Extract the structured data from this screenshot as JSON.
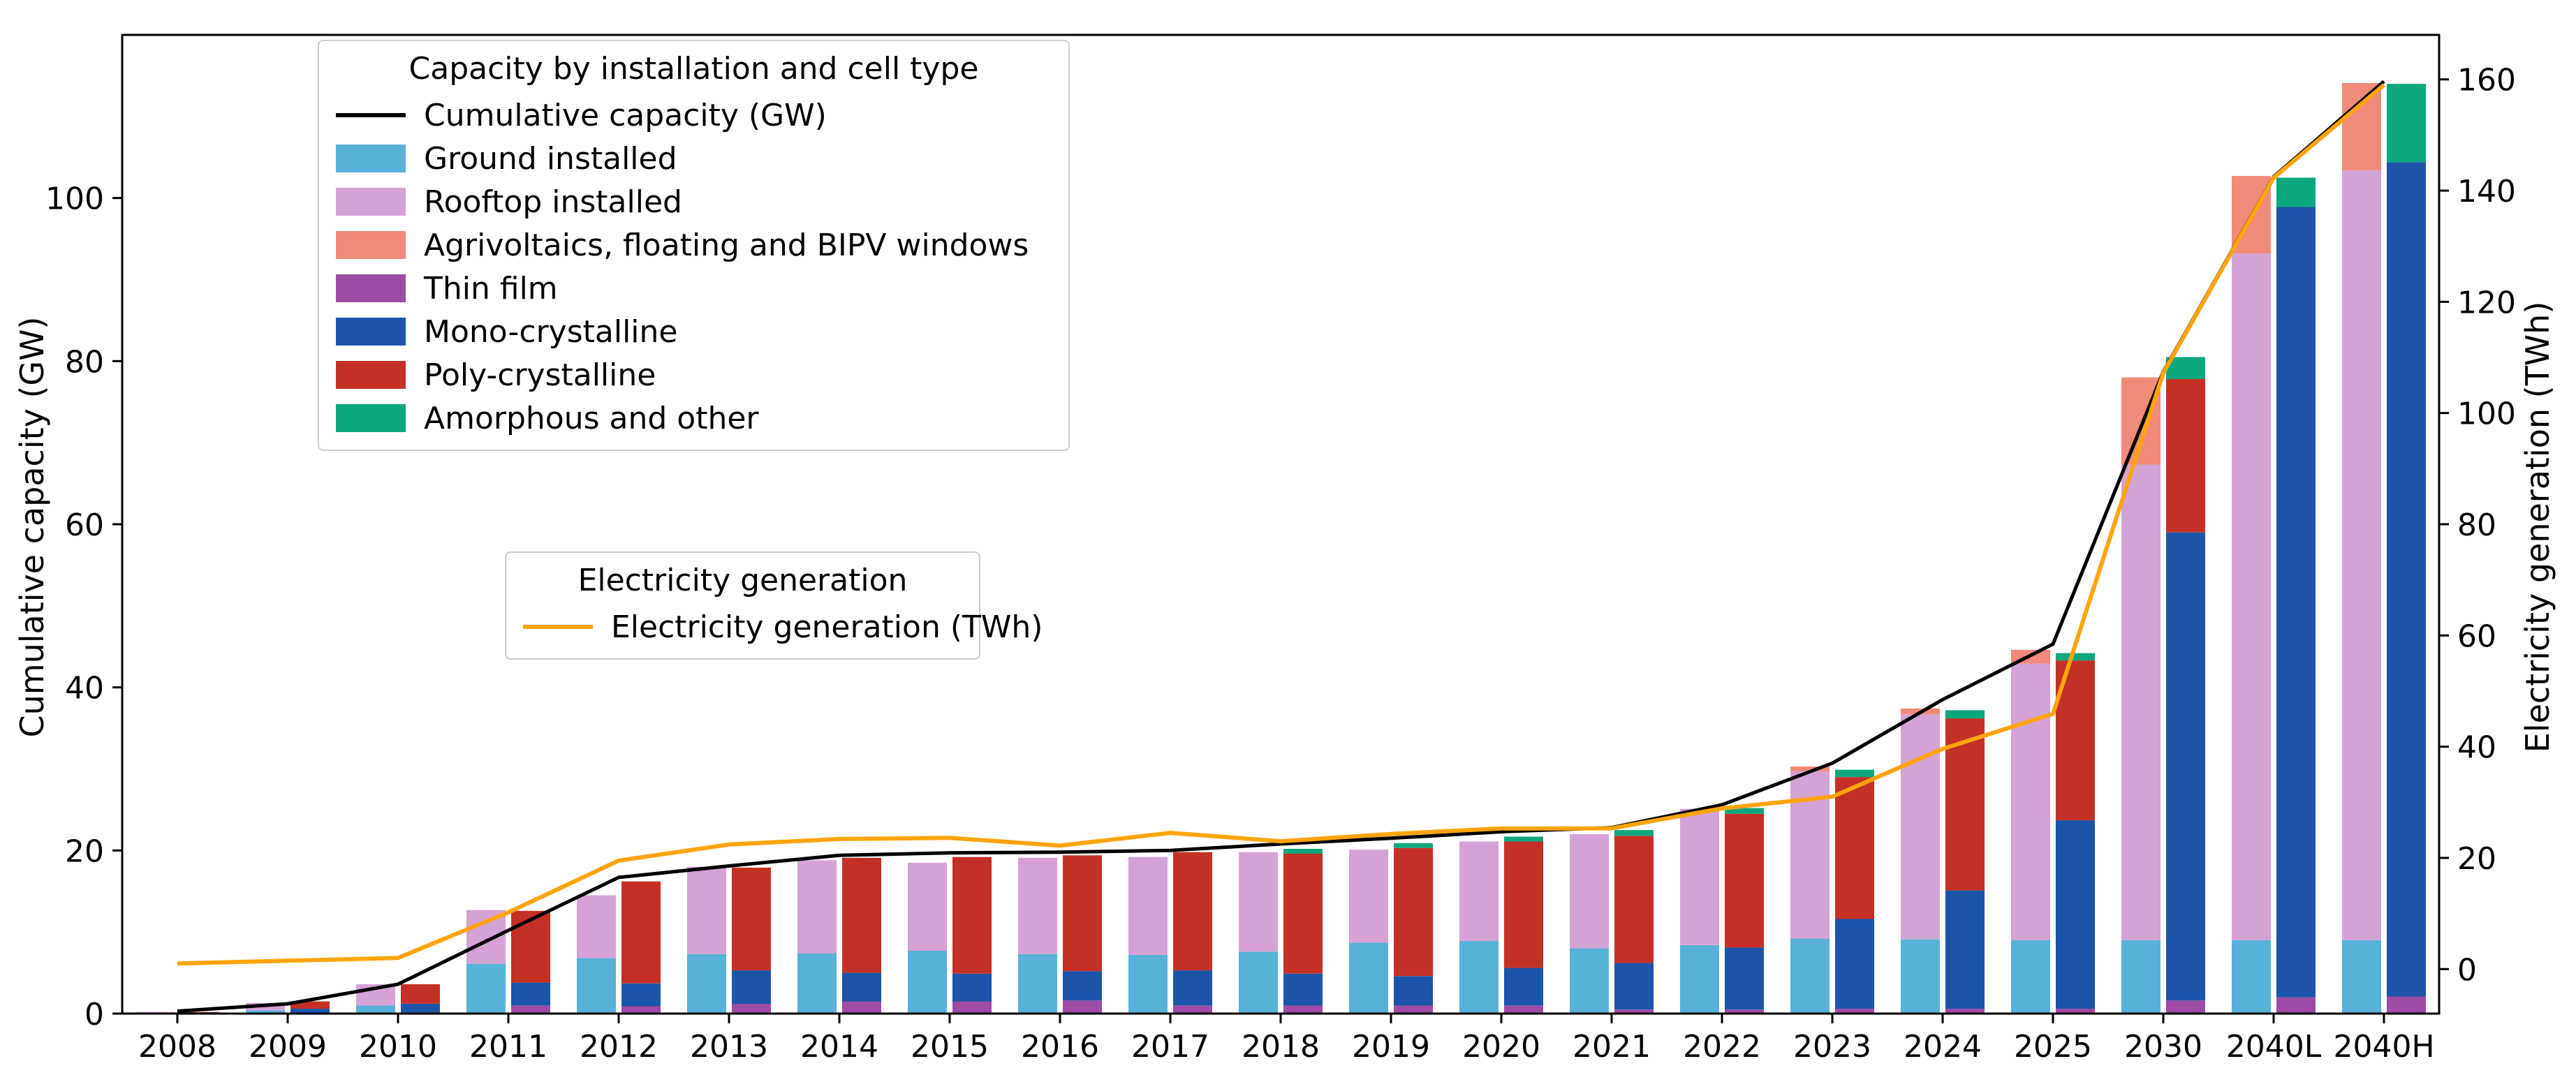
{
  "figure": {
    "left_axis_label": "Cumulative capacity (GW)",
    "right_axis_label": "Electricity generation (TWh)"
  },
  "chart_data": {
    "type": "bar",
    "title": "",
    "categories": [
      "2008",
      "2009",
      "2010",
      "2011",
      "2012",
      "2013",
      "2014",
      "2015",
      "2016",
      "2017",
      "2018",
      "2019",
      "2020",
      "2021",
      "2022",
      "2023",
      "2024",
      "2025",
      "2030",
      "2040L",
      "2040H"
    ],
    "left_axis": {
      "label": "Cumulative capacity (GW)",
      "min": 0,
      "max": 120,
      "ticks": [
        0,
        20,
        40,
        60,
        80,
        100
      ]
    },
    "right_axis": {
      "label": "Electricity generation (TWh)",
      "min": -8,
      "max": 168,
      "ticks": [
        0,
        20,
        40,
        60,
        80,
        100,
        120,
        140,
        160
      ]
    },
    "grid": "off",
    "installation_series": [
      {
        "name": "Ground installed",
        "color": "#58b1d8",
        "values": [
          0.05,
          0.4,
          1.0,
          6.1,
          6.8,
          7.3,
          7.4,
          7.7,
          7.3,
          7.2,
          7.6,
          8.7,
          8.9,
          8.0,
          8.4,
          9.2,
          9.1,
          9.0,
          9.0,
          9.0,
          9.0
        ]
      },
      {
        "name": "Rooftop installed",
        "color": "#d5a2d6",
        "values": [
          0.15,
          0.9,
          2.6,
          6.6,
          7.7,
          10.7,
          11.4,
          10.8,
          11.8,
          12.0,
          12.2,
          11.4,
          12.2,
          14.0,
          16.7,
          20.5,
          27.6,
          33.9,
          58.3,
          84.2,
          94.4
        ]
      },
      {
        "name": "Agrivoltaics, floating and BIPV windows",
        "color": "#f08a7a",
        "values": [
          0,
          0,
          0,
          0,
          0,
          0,
          0,
          0,
          0,
          0,
          0,
          0,
          0,
          0,
          0,
          0.6,
          0.7,
          1.7,
          10.7,
          9.5,
          10.7
        ]
      }
    ],
    "cell_series": [
      {
        "name": "Thin film",
        "color": "#9d4ba4",
        "values": [
          0.02,
          0.1,
          0.15,
          1.0,
          0.9,
          1.2,
          1.5,
          1.5,
          1.6,
          1.0,
          1.0,
          1.0,
          1.0,
          0.5,
          0.5,
          0.6,
          0.6,
          0.6,
          1.6,
          2.0,
          2.1
        ]
      },
      {
        "name": "Mono-crystalline",
        "color": "#1c55a9",
        "values": [
          0.06,
          0.5,
          1.05,
          2.8,
          2.8,
          4.1,
          3.5,
          3.4,
          3.6,
          4.3,
          3.9,
          3.6,
          4.6,
          5.7,
          7.6,
          11.0,
          14.5,
          23.1,
          57.4,
          96.9,
          102.3
        ]
      },
      {
        "name": "Poly-crystalline",
        "color": "#c43026",
        "values": [
          0.12,
          0.9,
          2.4,
          8.8,
          12.5,
          12.6,
          14.1,
          14.3,
          14.2,
          14.5,
          14.7,
          15.7,
          15.5,
          15.6,
          16.4,
          17.4,
          21.1,
          19.6,
          18.8,
          0,
          0
        ]
      },
      {
        "name": "Amorphous and other",
        "color": "#0ca77d",
        "values": [
          0,
          0,
          0,
          0,
          0,
          0,
          0,
          0,
          0,
          0,
          0.6,
          0.6,
          0.6,
          0.7,
          0.7,
          0.9,
          1.0,
          0.9,
          2.7,
          3.6,
          9.6
        ]
      }
    ],
    "lines": [
      {
        "name": "Cumulative capacity (GW)",
        "axis": "left",
        "color": "#000000",
        "width": 5,
        "values": [
          0.3,
          1.2,
          3.6,
          10.2,
          16.7,
          18.1,
          19.4,
          19.7,
          19.8,
          20.0,
          20.8,
          21.5,
          22.3,
          22.8,
          25.6,
          30.7,
          38.5,
          45.3,
          78.7,
          102.6,
          114.3
        ]
      },
      {
        "name": "Electricity generation (TWh)",
        "axis": "right",
        "color": "#ffa40c",
        "width": 6,
        "values": [
          1.0,
          1.5,
          2.0,
          10.2,
          19.5,
          22.4,
          23.4,
          23.6,
          22.2,
          24.5,
          23.0,
          24.3,
          25.3,
          25.3,
          28.9,
          31.0,
          39.6,
          45.9,
          107.2,
          142.3,
          159.0
        ]
      }
    ],
    "legends": [
      {
        "title": "Capacity by installation and cell type",
        "position": "upper-left",
        "entries": [
          {
            "type": "line",
            "color": "#000000",
            "label": "Cumulative capacity (GW)"
          },
          {
            "type": "patch",
            "color": "#58b1d8",
            "label": "Ground installed"
          },
          {
            "type": "patch",
            "color": "#d5a2d6",
            "label": "Rooftop installed"
          },
          {
            "type": "patch",
            "color": "#f08a7a",
            "label": "Agrivoltaics, floating and BIPV windows"
          },
          {
            "type": "patch",
            "color": "#9d4ba4",
            "label": "Thin film"
          },
          {
            "type": "patch",
            "color": "#1c55a9",
            "label": "Mono-crystalline"
          },
          {
            "type": "patch",
            "color": "#c43026",
            "label": "Poly-crystalline"
          },
          {
            "type": "patch",
            "color": "#0ca77d",
            "label": "Amorphous and other"
          }
        ]
      },
      {
        "title": "Electricity generation",
        "position": "center-left",
        "entries": [
          {
            "type": "line",
            "color": "#ffa40c",
            "label": "Electricity generation (TWh)"
          }
        ]
      }
    ]
  }
}
